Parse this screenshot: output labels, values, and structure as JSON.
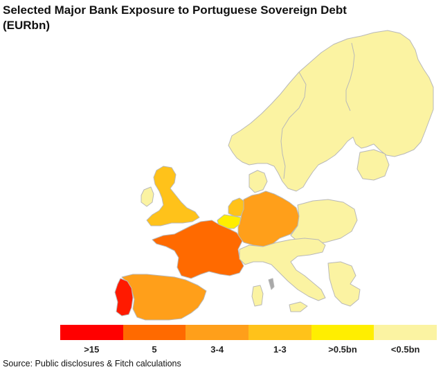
{
  "title_line1": "Selected Major Bank Exposure to Portuguese Sovereign Debt",
  "title_line2": "(EURbn)",
  "source": "Source: Public disclosures & Fitch calculations",
  "legend": [
    {
      "label": ">15",
      "color": "#ff0000"
    },
    {
      "label": "5",
      "color": "#ff6a00"
    },
    {
      "label": "3-4",
      "color": "#ff9f1a"
    },
    {
      "label": "1-3",
      "color": "#ffc21a"
    },
    {
      "label": ">0.5bn",
      "color": "#ffee00"
    },
    {
      "label": "<0.5bn",
      "color": "#fbf3a2"
    }
  ],
  "colors": {
    "portugal": "#ff1a00",
    "france": "#ff6a00",
    "spain": "#ff9f1a",
    "germany": "#ff9f1a",
    "uk": "#ffc21a",
    "netherlands": "#ffc21a",
    "belgium": "#ffee00",
    "other": "#fbf3a2",
    "border": "#b8b8b8",
    "disputed": "#a9a9a9"
  }
}
